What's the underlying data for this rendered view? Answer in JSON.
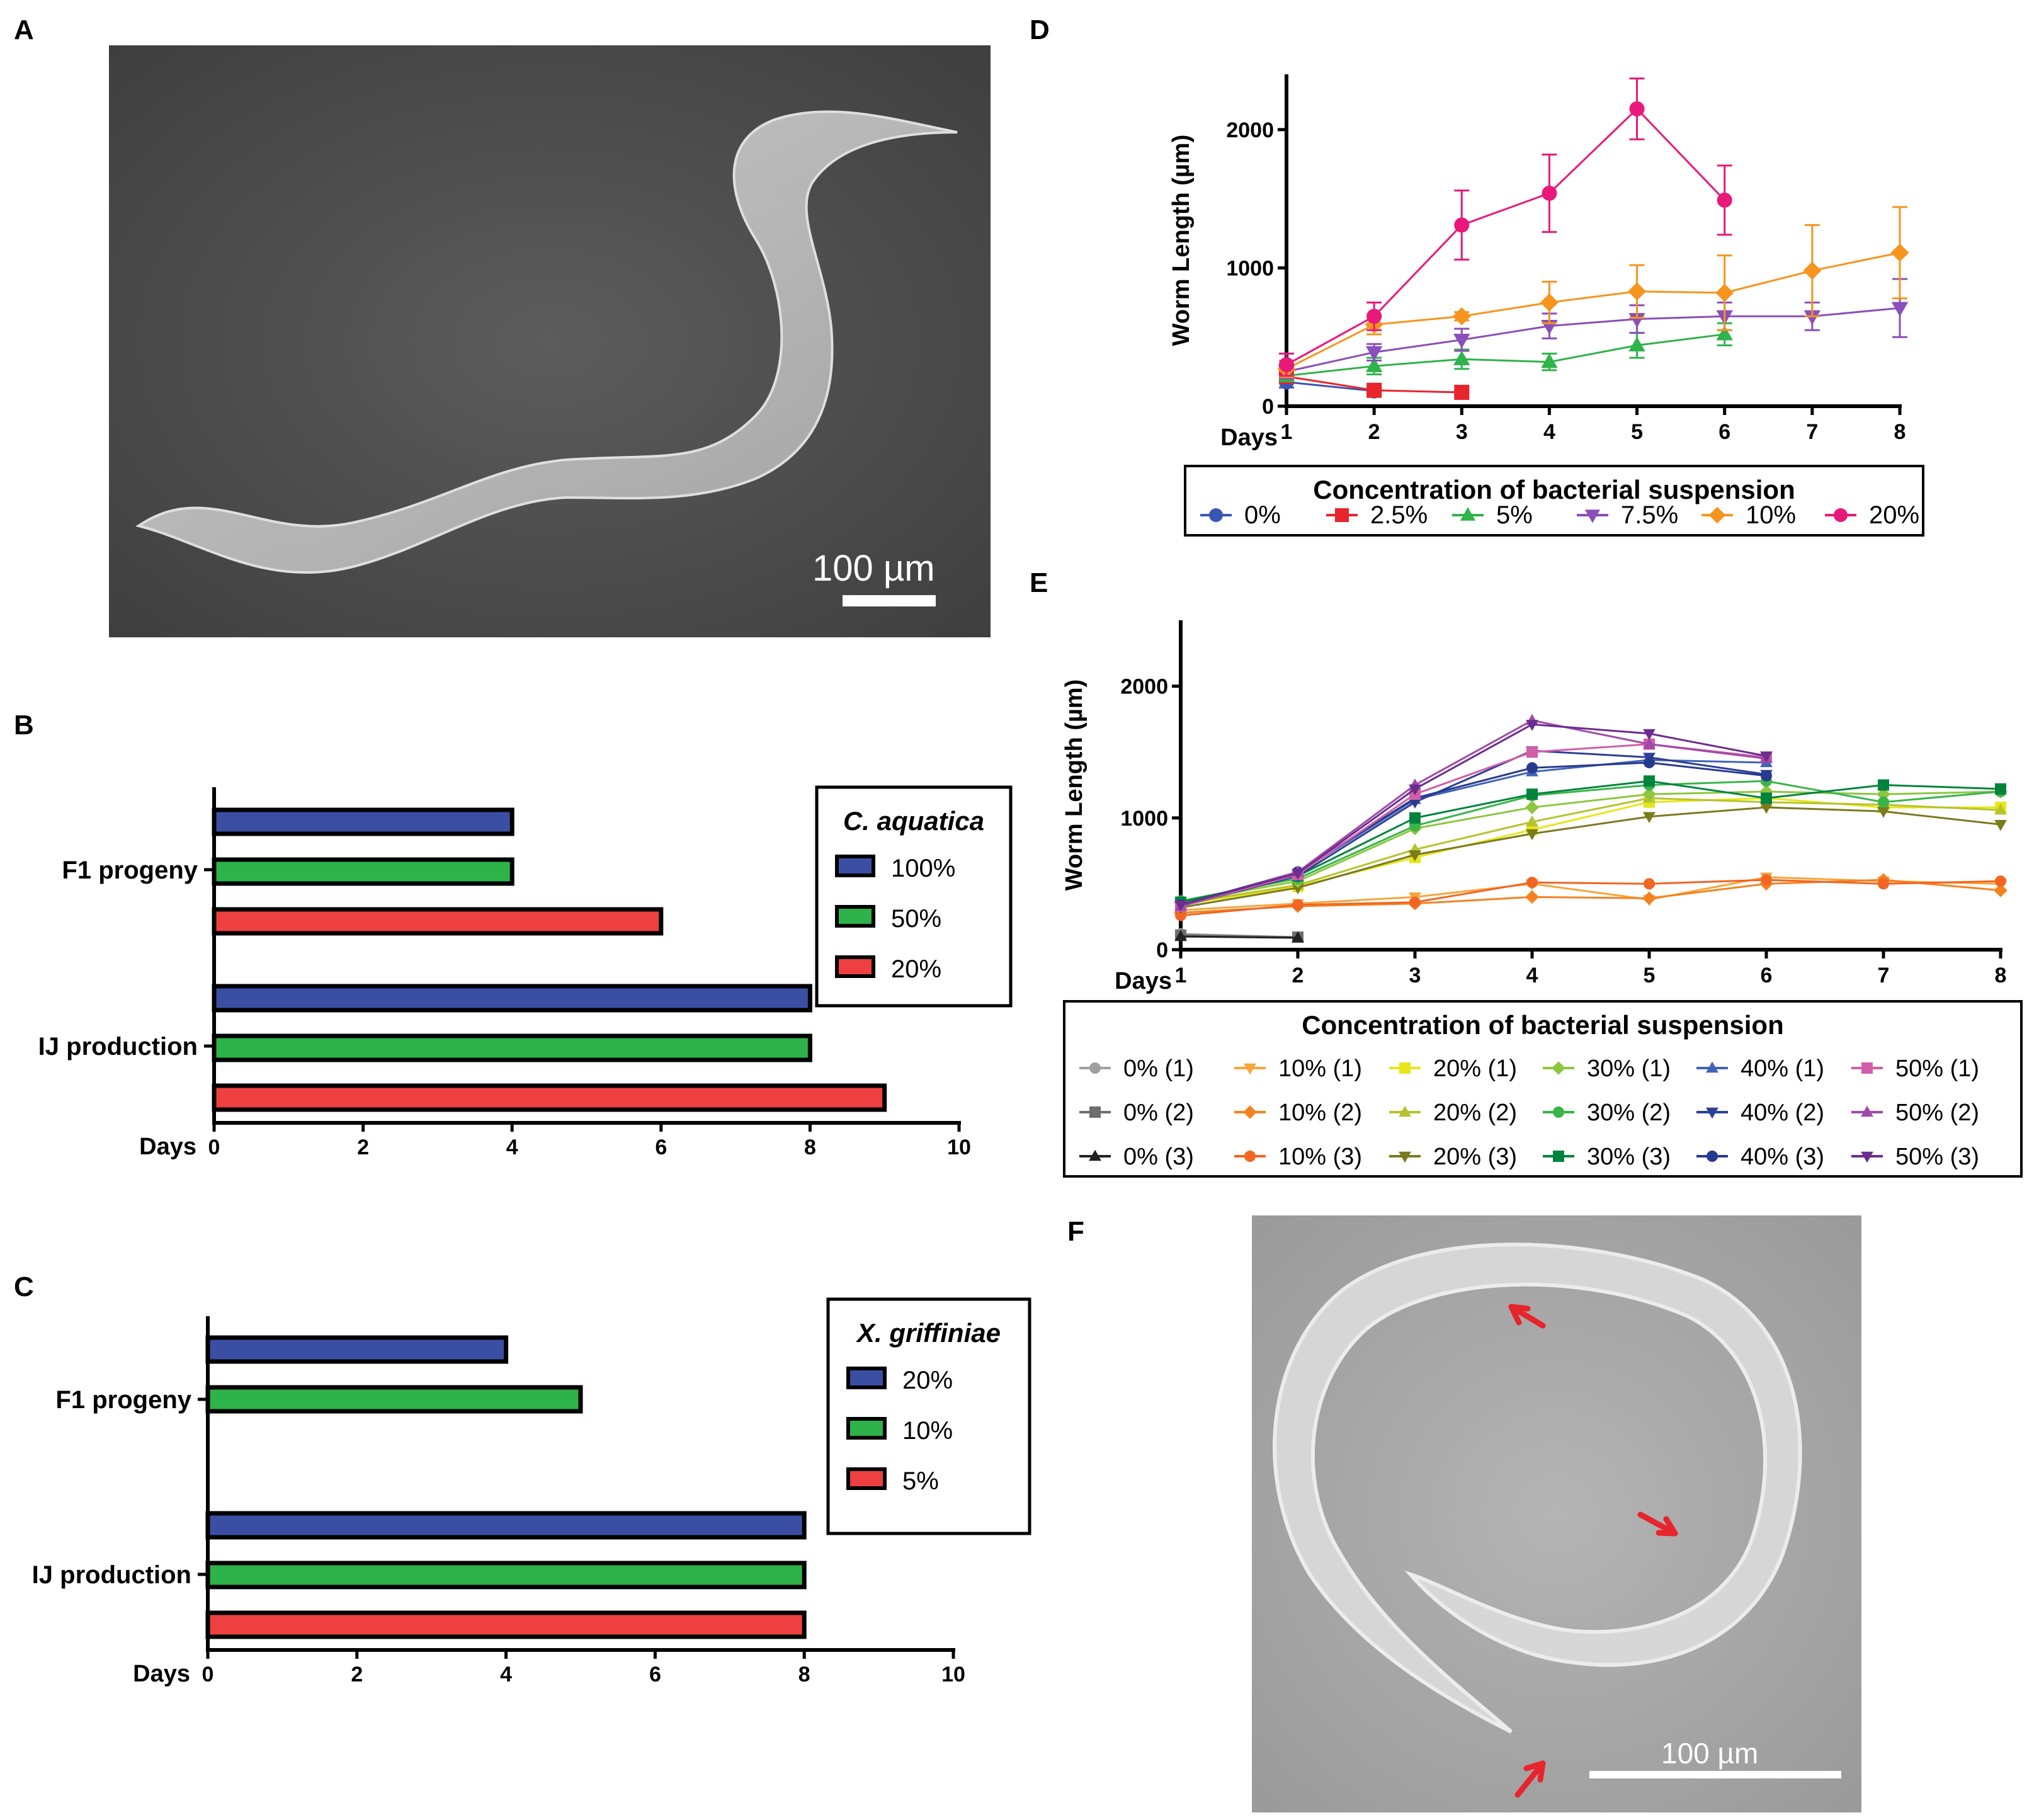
{
  "panel_labels": [
    "A",
    "B",
    "C",
    "D",
    "E",
    "F"
  ],
  "micrographs": {
    "A": {
      "scale_bar_label": "100 µm"
    },
    "F": {
      "scale_bar_label": "100 µm"
    }
  },
  "colors": {
    "blue": "#3a4fa3",
    "green": "#2db34a",
    "red": "#ee4040",
    "c0": "#3a55b4",
    "c25": "#e8242c",
    "c5": "#2fb34a",
    "c75": "#8a4fb8",
    "c10": "#f7941d",
    "c20": "#e8197a"
  },
  "chart_data": [
    {
      "panel": "B",
      "type": "bar",
      "orientation": "horizontal",
      "categories": [
        "F1 progeny",
        "IJ production"
      ],
      "xlabel": "Days",
      "xlim": [
        0,
        10
      ],
      "xticks": [
        0,
        2,
        4,
        6,
        8,
        10
      ],
      "legend_title": "C. aquatica",
      "legend_position": "top-right",
      "series": [
        {
          "name": "100%",
          "color": "#3a4fa3",
          "values": [
            4,
            8
          ]
        },
        {
          "name": "50%",
          "color": "#2db34a",
          "values": [
            4,
            8
          ]
        },
        {
          "name": "20%",
          "color": "#ee4040",
          "values": [
            6,
            9
          ]
        }
      ]
    },
    {
      "panel": "C",
      "type": "bar",
      "orientation": "horizontal",
      "categories": [
        "F1 progeny",
        "IJ production"
      ],
      "xlabel": "Days",
      "xlim": [
        0,
        10
      ],
      "xticks": [
        0,
        2,
        4,
        6,
        8,
        10
      ],
      "legend_title": "X. griffiniae",
      "legend_position": "top-right",
      "series": [
        {
          "name": "20%",
          "color": "#3a4fa3",
          "values": [
            4,
            8
          ]
        },
        {
          "name": "10%",
          "color": "#2db34a",
          "values": [
            5,
            8
          ]
        },
        {
          "name": "5%",
          "color": "#ee4040",
          "values": [
            null,
            8
          ]
        }
      ]
    },
    {
      "panel": "D",
      "type": "line",
      "xlabel": "Days",
      "ylabel": "Worm Length (µm)",
      "x": [
        1,
        2,
        3,
        4,
        5,
        6,
        7,
        8
      ],
      "xticks": [
        1,
        2,
        3,
        4,
        5,
        6,
        7,
        8
      ],
      "yticks": [
        0,
        1000,
        2000
      ],
      "ylim": [
        0,
        2400
      ],
      "legend_title": "Concentration of bacterial suspension",
      "legend_position": "bottom",
      "series": [
        {
          "name": "0%",
          "color": "#3a55b4",
          "marker": "circle",
          "values": [
            175,
            110,
            null,
            null,
            null,
            null,
            null,
            null
          ],
          "err": [
            40,
            20,
            null,
            null,
            null,
            null,
            null,
            null
          ]
        },
        {
          "name": "2.5%",
          "color": "#e8242c",
          "marker": "square",
          "values": [
            215,
            115,
            100,
            null,
            null,
            null,
            null,
            null
          ],
          "err": [
            30,
            15,
            10,
            null,
            null,
            null,
            null,
            null
          ]
        },
        {
          "name": "5%",
          "color": "#2fb34a",
          "marker": "triangle-up",
          "values": [
            220,
            290,
            340,
            320,
            440,
            520,
            null,
            null
          ],
          "err": [
            40,
            60,
            70,
            60,
            90,
            80,
            null,
            null
          ]
        },
        {
          "name": "7.5%",
          "color": "#8a4fb8",
          "marker": "triangle-down",
          "values": [
            250,
            390,
            480,
            580,
            630,
            650,
            650,
            710
          ],
          "err": [
            50,
            60,
            80,
            90,
            100,
            100,
            100,
            210
          ]
        },
        {
          "name": "10%",
          "color": "#f7941d",
          "marker": "diamond",
          "values": [
            270,
            590,
            650,
            750,
            830,
            820,
            980,
            1110
          ],
          "err": [
            60,
            70,
            30,
            150,
            190,
            270,
            330,
            330
          ]
        },
        {
          "name": "20%",
          "color": "#e8197a",
          "marker": "circle",
          "values": [
            300,
            650,
            1310,
            1540,
            2150,
            1490,
            null,
            null
          ],
          "err": [
            80,
            100,
            250,
            280,
            220,
            250,
            null,
            null
          ]
        }
      ]
    },
    {
      "panel": "E",
      "type": "line",
      "xlabel": "Days",
      "ylabel": "Worm Length (µm)",
      "x": [
        1,
        2,
        3,
        4,
        5,
        6,
        7,
        8
      ],
      "xticks": [
        1,
        2,
        3,
        4,
        5,
        6,
        7,
        8
      ],
      "yticks": [
        0,
        1000,
        2000
      ],
      "ylim": [
        0,
        2500
      ],
      "legend_title": "Concentration of bacterial suspension",
      "legend_position": "bottom",
      "series": [
        {
          "name": "0% (1)",
          "color": "#a0a0a0",
          "marker": "circle",
          "values": [
            120,
            95,
            null,
            null,
            null,
            null,
            null,
            null
          ]
        },
        {
          "name": "0% (2)",
          "color": "#6e6e6e",
          "marker": "square",
          "values": [
            110,
            95,
            null,
            null,
            null,
            null,
            null,
            null
          ]
        },
        {
          "name": "0% (3)",
          "color": "#222222",
          "marker": "triangle-up",
          "values": [
            100,
            90,
            null,
            null,
            null,
            null,
            null,
            null
          ]
        },
        {
          "name": "10% (1)",
          "color": "#f7a53b",
          "marker": "triangle-down",
          "values": [
            300,
            350,
            400,
            500,
            380,
            550,
            520,
            500
          ]
        },
        {
          "name": "10% (2)",
          "color": "#f58220",
          "marker": "diamond",
          "values": [
            280,
            330,
            350,
            400,
            390,
            500,
            530,
            450
          ]
        },
        {
          "name": "10% (3)",
          "color": "#f26522",
          "marker": "circle",
          "values": [
            260,
            340,
            360,
            510,
            500,
            530,
            500,
            520
          ]
        },
        {
          "name": "20% (1)",
          "color": "#e6e619",
          "marker": "square",
          "values": [
            340,
            480,
            700,
            910,
            1120,
            1150,
            1080,
            1080
          ]
        },
        {
          "name": "20% (2)",
          "color": "#b5c42d",
          "marker": "triangle-up",
          "values": [
            350,
            490,
            760,
            970,
            1150,
            1120,
            1100,
            1060
          ]
        },
        {
          "name": "20% (3)",
          "color": "#7a7a1e",
          "marker": "triangle-down",
          "values": [
            320,
            470,
            720,
            880,
            1010,
            1080,
            1050,
            950
          ]
        },
        {
          "name": "30% (1)",
          "color": "#8dc63f",
          "marker": "diamond",
          "values": [
            360,
            520,
            920,
            1080,
            1180,
            1200,
            1180,
            1200
          ]
        },
        {
          "name": "30% (2)",
          "color": "#39b54a",
          "marker": "circle",
          "values": [
            370,
            540,
            940,
            1170,
            1250,
            1280,
            1120,
            1200
          ]
        },
        {
          "name": "30% (3)",
          "color": "#00843d",
          "marker": "square",
          "values": [
            360,
            560,
            1000,
            1180,
            1280,
            1150,
            1250,
            1220
          ]
        },
        {
          "name": "40% (1)",
          "color": "#4063b8",
          "marker": "triangle-up",
          "values": [
            330,
            580,
            1140,
            1350,
            1440,
            1420,
            null,
            null
          ]
        },
        {
          "name": "40% (2)",
          "color": "#2e3f96",
          "marker": "triangle-down",
          "values": [
            330,
            560,
            1120,
            1510,
            1460,
            1330,
            null,
            null
          ]
        },
        {
          "name": "40% (3)",
          "color": "#283a8e",
          "marker": "circle",
          "values": [
            340,
            590,
            1150,
            1380,
            1420,
            1320,
            null,
            null
          ]
        },
        {
          "name": "50% (1)",
          "color": "#d05fa8",
          "marker": "square",
          "values": [
            330,
            570,
            1180,
            1500,
            1560,
            1460,
            null,
            null
          ]
        },
        {
          "name": "50% (2)",
          "color": "#a04aa8",
          "marker": "triangle-up",
          "values": [
            330,
            590,
            1250,
            1740,
            1560,
            1450,
            null,
            null
          ]
        },
        {
          "name": "50% (3)",
          "color": "#6b2d90",
          "marker": "triangle-down",
          "values": [
            340,
            580,
            1220,
            1710,
            1640,
            1470,
            null,
            null
          ]
        }
      ]
    }
  ]
}
